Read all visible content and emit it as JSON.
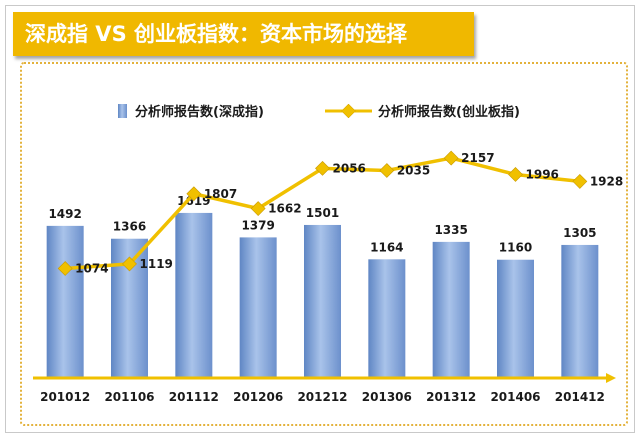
{
  "header": {
    "title": "深成指 VS 创业板指数：资本市场的选择"
  },
  "colors": {
    "bar": "#7ea2d8",
    "bar_dark": "#5a7fb8",
    "line": "#f0c000",
    "marker": "#f0c000",
    "title_bg": "#f0b800",
    "axis": "#f0c000"
  },
  "chart_data": {
    "type": "bar",
    "categories": [
      "201012",
      "201106",
      "201112",
      "201206",
      "201212",
      "201306",
      "201312",
      "201406",
      "201412"
    ],
    "series": [
      {
        "name": "分析师报告数(深成指)",
        "type": "bar",
        "values": [
          1492,
          1366,
          1619,
          1379,
          1501,
          1164,
          1335,
          1160,
          1305
        ]
      },
      {
        "name": "分析师报告数(创业板指)",
        "type": "line",
        "values": [
          1074,
          1119,
          1807,
          1662,
          2056,
          2035,
          2157,
          1996,
          1928
        ]
      }
    ],
    "ylim": [
      0,
      2550
    ],
    "legend_position": "top",
    "grid": false
  }
}
